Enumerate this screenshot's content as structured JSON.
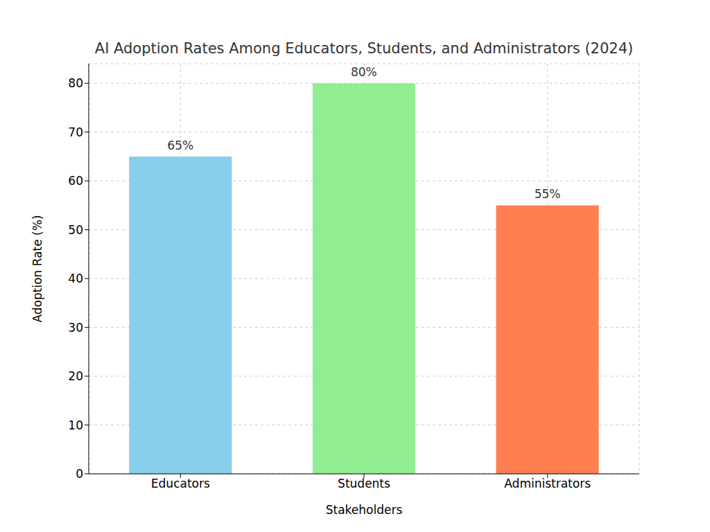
{
  "chart_data": {
    "type": "bar",
    "title": "AI Adoption Rates Among Educators, Students, and Administrators (2024)",
    "x_label": "Stakeholders",
    "y_label": "Adoption Rate (%)",
    "categories": [
      "Educators",
      "Students",
      "Administrators"
    ],
    "values": [
      65,
      80,
      55
    ],
    "value_labels": [
      "65%",
      "80%",
      "55%"
    ],
    "colors": [
      "#87ceeb",
      "#90ee90",
      "#ff7f50"
    ],
    "ylim": [
      0,
      84
    ],
    "yticks": [
      0,
      10,
      20,
      30,
      40,
      50,
      60,
      70,
      80
    ],
    "grid": true,
    "data_labels": true
  }
}
